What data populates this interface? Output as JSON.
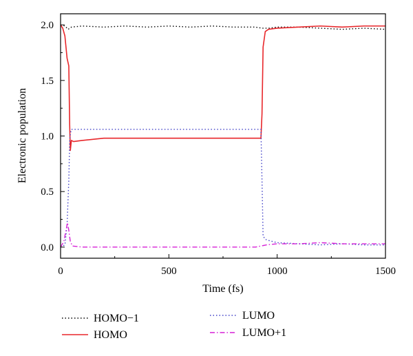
{
  "chart_data": {
    "type": "line",
    "title": "",
    "xlabel": "Time (fs)",
    "ylabel": "Electronic population",
    "xlim": [
      0,
      1500
    ],
    "ylim": [
      -0.1,
      2.1
    ],
    "xticks": [
      0,
      500,
      1000,
      1500
    ],
    "yticks": [
      0.0,
      0.5,
      1.0,
      1.5,
      2.0
    ],
    "xtick_labels": [
      "0",
      "500",
      "1000",
      "1500"
    ],
    "ytick_labels": [
      "0.0",
      "0.5",
      "1.0",
      "1.5",
      "2.0"
    ],
    "grid": false,
    "legend_position": "bottom",
    "series": [
      {
        "name": "HOMO−1",
        "color": "#000000",
        "style": "dotted",
        "x": [
          0,
          20,
          35,
          50,
          100,
          200,
          300,
          400,
          500,
          600,
          700,
          800,
          900,
          930,
          960,
          1000,
          1100,
          1200,
          1300,
          1400,
          1500
        ],
        "y": [
          2.0,
          1.99,
          1.96,
          1.98,
          1.99,
          1.98,
          1.99,
          1.98,
          1.99,
          1.98,
          1.99,
          1.98,
          1.98,
          1.97,
          1.97,
          1.98,
          1.98,
          1.97,
          1.96,
          1.97,
          1.96
        ]
      },
      {
        "name": "HOMO",
        "color": "#e8262a",
        "style": "solid",
        "x": [
          0,
          10,
          20,
          30,
          38,
          42,
          45,
          50,
          60,
          100,
          150,
          200,
          300,
          400,
          500,
          600,
          700,
          800,
          900,
          925,
          930,
          935,
          945,
          960,
          1000,
          1100,
          1200,
          1300,
          1400,
          1500
        ],
        "y": [
          2.0,
          1.97,
          1.9,
          1.7,
          1.63,
          1.1,
          0.87,
          0.96,
          0.95,
          0.96,
          0.97,
          0.98,
          0.98,
          0.98,
          0.98,
          0.98,
          0.98,
          0.98,
          0.98,
          0.98,
          1.2,
          1.8,
          1.94,
          1.96,
          1.97,
          1.98,
          1.99,
          1.98,
          1.99,
          1.99
        ]
      },
      {
        "name": "LUMO",
        "color": "#3f3fc7",
        "style": "dotted",
        "x": [
          0,
          20,
          30,
          38,
          42,
          45,
          50,
          60,
          100,
          200,
          300,
          400,
          500,
          600,
          700,
          800,
          900,
          925,
          930,
          935,
          945,
          960,
          1000,
          1100,
          1200,
          1300,
          1400,
          1500
        ],
        "y": [
          0.0,
          0.02,
          0.2,
          0.6,
          0.95,
          1.02,
          1.06,
          1.06,
          1.06,
          1.06,
          1.06,
          1.06,
          1.06,
          1.06,
          1.06,
          1.06,
          1.06,
          1.06,
          0.6,
          0.1,
          0.07,
          0.06,
          0.04,
          0.03,
          0.02,
          0.03,
          0.02,
          0.02
        ]
      },
      {
        "name": "LUMO+1",
        "color": "#d61fd6",
        "style": "dashdot",
        "x": [
          0,
          15,
          25,
          32,
          38,
          45,
          55,
          100,
          200,
          300,
          400,
          500,
          600,
          700,
          800,
          900,
          950,
          1000,
          1100,
          1200,
          1300,
          1400,
          1500
        ],
        "y": [
          0.0,
          0.05,
          0.15,
          0.22,
          0.15,
          0.05,
          0.01,
          0.0,
          0.0,
          0.0,
          0.0,
          0.0,
          0.0,
          0.0,
          0.0,
          0.0,
          0.02,
          0.03,
          0.03,
          0.04,
          0.03,
          0.03,
          0.03
        ]
      }
    ]
  },
  "colors": {
    "axis": "#000000",
    "background": "#ffffff"
  }
}
